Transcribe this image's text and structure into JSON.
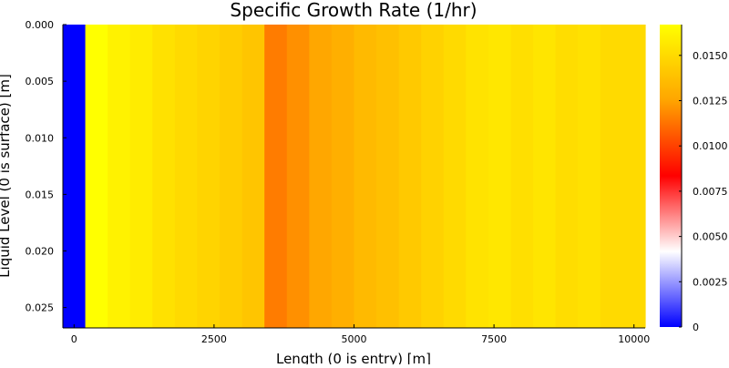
{
  "chart_data": {
    "type": "heatmap",
    "title": "Specific Growth Rate (1/hr)",
    "xlabel": "Length (0 is entry) [m]",
    "ylabel": "Liquid Level (0 is surface) [m]",
    "xlim": [
      -200,
      10200
    ],
    "ylim": [
      0,
      0.0268
    ],
    "yreversed": true,
    "x_ticks": [
      0,
      2500,
      5000,
      7500,
      10000
    ],
    "x_tick_labels": [
      "0",
      "2500",
      "5000",
      "7500",
      "10000"
    ],
    "y_ticks": [
      0.0,
      0.005,
      0.01,
      0.015,
      0.02,
      0.025
    ],
    "y_tick_labels": [
      "0.000",
      "0.005",
      "0.010",
      "0.015",
      "0.020",
      "0.025"
    ],
    "colorbar": {
      "min": 0,
      "max": 0.0167,
      "ticks": [
        0,
        0.0025,
        0.005,
        0.0075,
        0.01,
        0.0125,
        0.015
      ],
      "tick_labels": [
        "0",
        "0.0025",
        "0.0050",
        "0.0075",
        "0.0100",
        "0.0125",
        "0.0150"
      ],
      "colormap": [
        "#0000ff",
        "#ffffff",
        "#ff0000",
        "#ffa500",
        "#ffff00"
      ]
    },
    "columns": [
      {
        "x_start": -200,
        "x_end": 200,
        "value": 0.0
      },
      {
        "x_start": 200,
        "x_end": 600,
        "value": 0.0167
      },
      {
        "x_start": 600,
        "x_end": 1000,
        "value": 0.0161
      },
      {
        "x_start": 1000,
        "x_end": 1400,
        "value": 0.0158
      },
      {
        "x_start": 1400,
        "x_end": 1800,
        "value": 0.0153
      },
      {
        "x_start": 1800,
        "x_end": 2200,
        "value": 0.015
      },
      {
        "x_start": 2200,
        "x_end": 2600,
        "value": 0.0147
      },
      {
        "x_start": 2600,
        "x_end": 3000,
        "value": 0.0144
      },
      {
        "x_start": 3000,
        "x_end": 3400,
        "value": 0.014
      },
      {
        "x_start": 3400,
        "x_end": 3800,
        "value": 0.0115
      },
      {
        "x_start": 3800,
        "x_end": 4200,
        "value": 0.012
      },
      {
        "x_start": 4200,
        "x_end": 4600,
        "value": 0.0126
      },
      {
        "x_start": 4600,
        "x_end": 5000,
        "value": 0.013
      },
      {
        "x_start": 5000,
        "x_end": 5400,
        "value": 0.0135
      },
      {
        "x_start": 5400,
        "x_end": 5800,
        "value": 0.0138
      },
      {
        "x_start": 5800,
        "x_end": 6200,
        "value": 0.0142
      },
      {
        "x_start": 6200,
        "x_end": 6600,
        "value": 0.0146
      },
      {
        "x_start": 6600,
        "x_end": 7000,
        "value": 0.015
      },
      {
        "x_start": 7000,
        "x_end": 7400,
        "value": 0.0154
      },
      {
        "x_start": 7400,
        "x_end": 7800,
        "value": 0.0156
      },
      {
        "x_start": 7800,
        "x_end": 8200,
        "value": 0.0152
      },
      {
        "x_start": 8200,
        "x_end": 8600,
        "value": 0.0155
      },
      {
        "x_start": 8600,
        "x_end": 9000,
        "value": 0.0151
      },
      {
        "x_start": 9000,
        "x_end": 9400,
        "value": 0.0153
      },
      {
        "x_start": 9400,
        "x_end": 10200,
        "value": 0.015
      }
    ]
  }
}
